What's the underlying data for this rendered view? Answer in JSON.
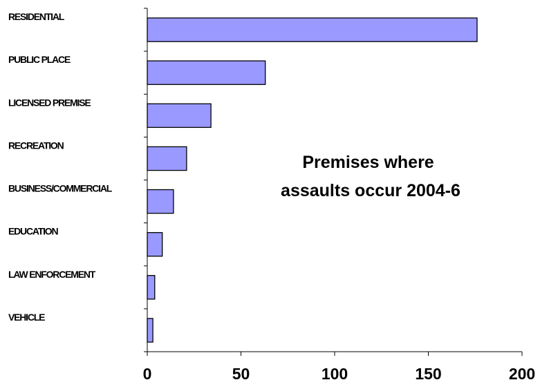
{
  "chart_data": {
    "type": "bar",
    "orientation": "horizontal",
    "title_lines": [
      "Premises where",
      "assaults occur 2004-6"
    ],
    "categories": [
      "RESIDENTIAL",
      "PUBLIC PLACE",
      "LICENSED PREMISE",
      "RECREATION",
      "BUSINESS/COMMERCIAL",
      "EDUCATION",
      "LAW ENFORCEMENT",
      "VEHICLE"
    ],
    "values": [
      176,
      63,
      34,
      21,
      14,
      8,
      4,
      3
    ],
    "xlim": [
      0,
      200
    ],
    "x_ticks": [
      0,
      50,
      100,
      150,
      200
    ],
    "bar_color": "#9999ff",
    "grid": false,
    "legend": "none"
  }
}
